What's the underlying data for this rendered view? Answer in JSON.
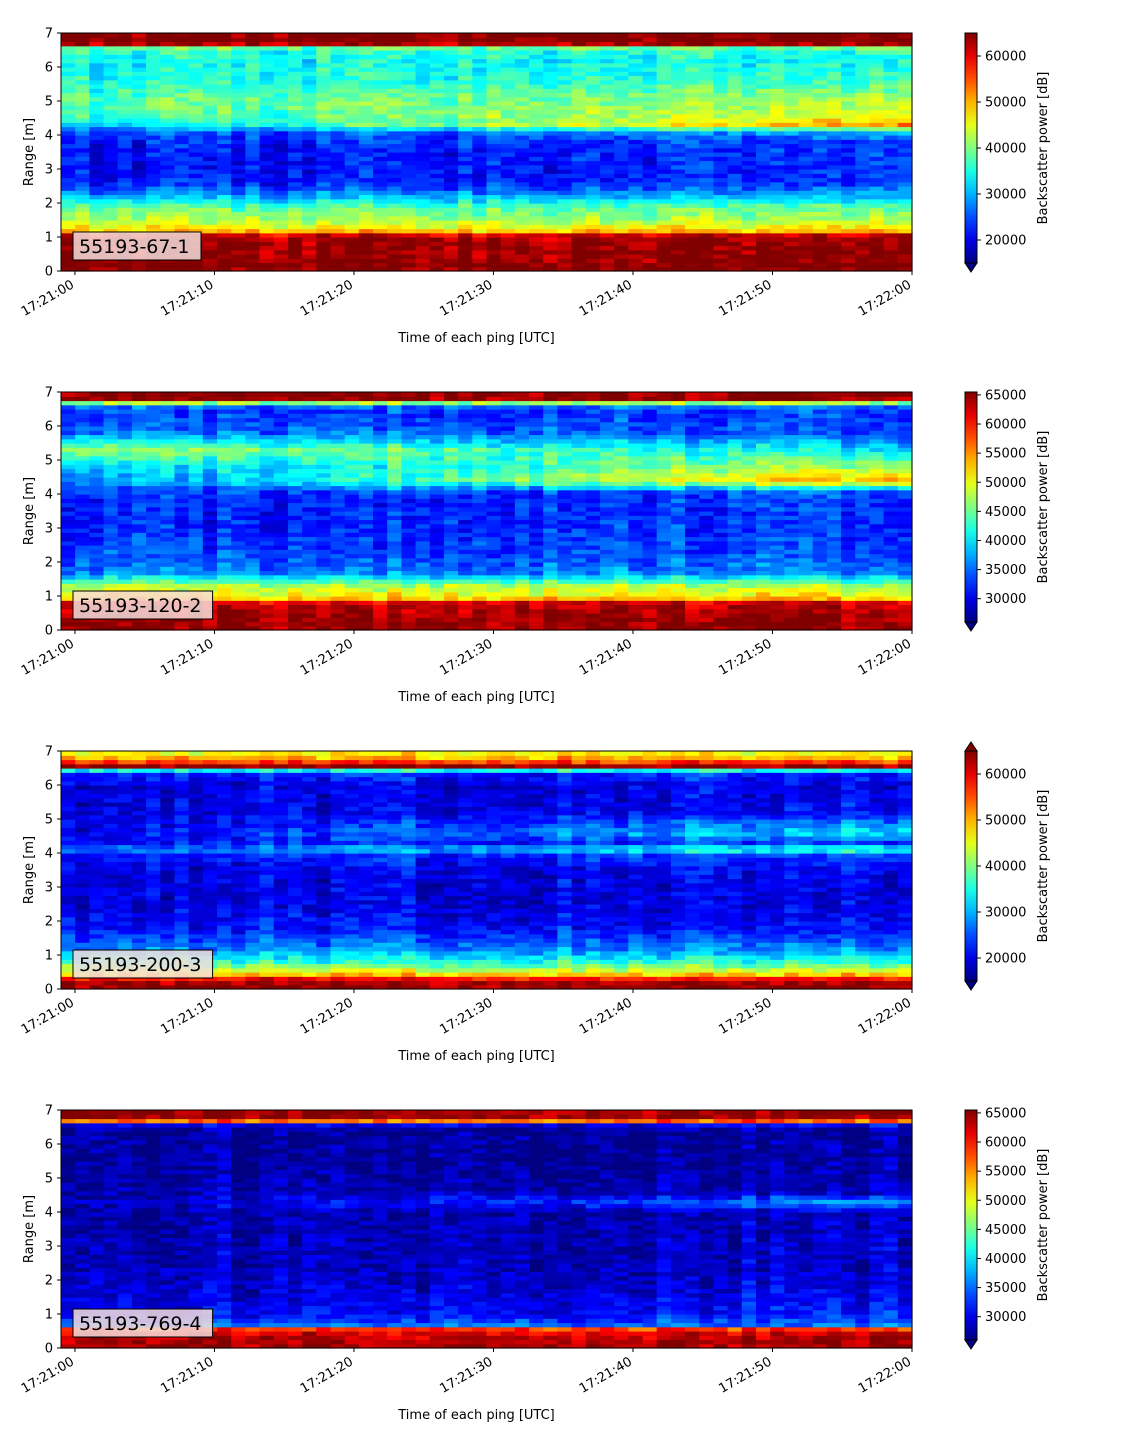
{
  "chart_data": [
    {
      "type": "heatmap",
      "panel_label": "55193-67-1",
      "xlabel": "Time of each ping [UTC]",
      "ylabel": "Range [m]",
      "colorbar_label": "Backscatter power [dB]",
      "colormap": "jet",
      "extend": "min",
      "xlim": [
        "17:20:59",
        "17:22:00"
      ],
      "ylim": [
        0,
        7
      ],
      "clim": [
        15000,
        65000
      ],
      "x_ticks": [
        "17:21:00",
        "17:21:10",
        "17:21:20",
        "17:21:30",
        "17:21:40",
        "17:21:50",
        "17:22:00"
      ],
      "y_ticks": [
        0,
        1,
        2,
        3,
        4,
        5,
        6,
        7
      ],
      "colorbar_ticks": [
        20000,
        30000,
        40000,
        50000,
        60000
      ],
      "profile": [
        {
          "range": 0.0,
          "start": 65000,
          "end": 65000
        },
        {
          "range": 0.2,
          "start": 65000,
          "end": 65000
        },
        {
          "range": 0.4,
          "start": 64000,
          "end": 64000
        },
        {
          "range": 0.8,
          "start": 64000,
          "end": 64000
        },
        {
          "range": 1.05,
          "start": 62000,
          "end": 62000
        },
        {
          "range": 1.2,
          "start": 48000,
          "end": 48000
        },
        {
          "range": 1.5,
          "start": 42000,
          "end": 42000
        },
        {
          "range": 1.9,
          "start": 38000,
          "end": 38000
        },
        {
          "range": 2.2,
          "start": 30000,
          "end": 30000
        },
        {
          "range": 2.6,
          "start": 22000,
          "end": 23000
        },
        {
          "range": 3.2,
          "start": 21000,
          "end": 23000
        },
        {
          "range": 3.8,
          "start": 22000,
          "end": 24000
        },
        {
          "range": 4.1,
          "start": 24000,
          "end": 30000
        },
        {
          "range": 4.3,
          "start": 30000,
          "end": 52000
        },
        {
          "range": 4.6,
          "start": 36000,
          "end": 45000
        },
        {
          "range": 5.0,
          "start": 38000,
          "end": 42000
        },
        {
          "range": 5.6,
          "start": 35000,
          "end": 36000
        },
        {
          "range": 6.2,
          "start": 34000,
          "end": 34000
        },
        {
          "range": 6.55,
          "start": 36000,
          "end": 36000
        },
        {
          "range": 6.7,
          "start": 65000,
          "end": 65000
        },
        {
          "range": 7.0,
          "start": 65000,
          "end": 65000
        }
      ]
    },
    {
      "type": "heatmap",
      "panel_label": "55193-120-2",
      "xlabel": "Time of each ping [UTC]",
      "ylabel": "Range [m]",
      "colorbar_label": "Backscatter power [dB]",
      "colormap": "jet",
      "extend": "min",
      "xlim": [
        "17:20:59",
        "17:22:00"
      ],
      "ylim": [
        0,
        7
      ],
      "clim": [
        26000,
        65500
      ],
      "x_ticks": [
        "17:21:00",
        "17:21:10",
        "17:21:20",
        "17:21:30",
        "17:21:40",
        "17:21:50",
        "17:22:00"
      ],
      "y_ticks": [
        0,
        1,
        2,
        3,
        4,
        5,
        6,
        7
      ],
      "colorbar_ticks": [
        30000,
        35000,
        40000,
        45000,
        50000,
        55000,
        60000,
        65000
      ],
      "profile": [
        {
          "range": 0.0,
          "start": 65000,
          "end": 65000
        },
        {
          "range": 0.2,
          "start": 65000,
          "end": 65000
        },
        {
          "range": 0.5,
          "start": 64000,
          "end": 64000
        },
        {
          "range": 0.8,
          "start": 63000,
          "end": 63000
        },
        {
          "range": 0.95,
          "start": 52000,
          "end": 52000
        },
        {
          "range": 1.3,
          "start": 48000,
          "end": 48000
        },
        {
          "range": 1.5,
          "start": 42000,
          "end": 42000
        },
        {
          "range": 1.7,
          "start": 36000,
          "end": 36000
        },
        {
          "range": 2.2,
          "start": 34000,
          "end": 34000
        },
        {
          "range": 3.0,
          "start": 32000,
          "end": 33000
        },
        {
          "range": 3.8,
          "start": 32000,
          "end": 33000
        },
        {
          "range": 4.1,
          "start": 33000,
          "end": 35000
        },
        {
          "range": 4.4,
          "start": 35000,
          "end": 56000
        },
        {
          "range": 4.8,
          "start": 38000,
          "end": 48000
        },
        {
          "range": 5.3,
          "start": 48000,
          "end": 40000
        },
        {
          "range": 5.8,
          "start": 36000,
          "end": 34000
        },
        {
          "range": 6.4,
          "start": 33000,
          "end": 33000
        },
        {
          "range": 6.65,
          "start": 36000,
          "end": 36000
        },
        {
          "range": 6.75,
          "start": 65000,
          "end": 65000
        },
        {
          "range": 7.0,
          "start": 65000,
          "end": 65000
        }
      ]
    },
    {
      "type": "heatmap",
      "panel_label": "55193-200-3",
      "xlabel": "Time of each ping [UTC]",
      "ylabel": "Range [m]",
      "colorbar_label": "Backscatter power [dB]",
      "colormap": "jet",
      "extend": "both",
      "xlim": [
        "17:20:59",
        "17:22:00"
      ],
      "ylim": [
        0,
        7
      ],
      "clim": [
        15000,
        65000
      ],
      "x_ticks": [
        "17:21:00",
        "17:21:10",
        "17:21:20",
        "17:21:30",
        "17:21:40",
        "17:21:50",
        "17:22:00"
      ],
      "y_ticks": [
        0,
        1,
        2,
        3,
        4,
        5,
        6,
        7
      ],
      "colorbar_ticks": [
        20000,
        30000,
        40000,
        50000,
        60000
      ],
      "profile": [
        {
          "range": 0.0,
          "start": 65000,
          "end": 65000
        },
        {
          "range": 0.25,
          "start": 63000,
          "end": 63000
        },
        {
          "range": 0.45,
          "start": 48000,
          "end": 48000
        },
        {
          "range": 0.8,
          "start": 36000,
          "end": 36000
        },
        {
          "range": 1.2,
          "start": 28000,
          "end": 28000
        },
        {
          "range": 1.8,
          "start": 22000,
          "end": 22000
        },
        {
          "range": 2.5,
          "start": 20000,
          "end": 20000
        },
        {
          "range": 3.5,
          "start": 20000,
          "end": 21000
        },
        {
          "range": 4.0,
          "start": 22000,
          "end": 26000
        },
        {
          "range": 4.1,
          "start": 28000,
          "end": 40000
        },
        {
          "range": 4.3,
          "start": 22000,
          "end": 24000
        },
        {
          "range": 4.6,
          "start": 21000,
          "end": 34000
        },
        {
          "range": 5.2,
          "start": 20000,
          "end": 22000
        },
        {
          "range": 6.0,
          "start": 20000,
          "end": 20000
        },
        {
          "range": 6.4,
          "start": 24000,
          "end": 24000
        },
        {
          "range": 6.55,
          "start": 65000,
          "end": 65000
        },
        {
          "range": 6.75,
          "start": 52000,
          "end": 52000
        },
        {
          "range": 7.0,
          "start": 45000,
          "end": 45000
        }
      ]
    },
    {
      "type": "heatmap",
      "panel_label": "55193-769-4",
      "xlabel": "Time of each ping [UTC]",
      "ylabel": "Range [m]",
      "colorbar_label": "Backscatter power [dB]",
      "colormap": "jet",
      "extend": "min",
      "xlim": [
        "17:20:59",
        "17:22:00"
      ],
      "ylim": [
        0,
        7
      ],
      "clim": [
        26000,
        65500
      ],
      "x_ticks": [
        "17:21:00",
        "17:21:10",
        "17:21:20",
        "17:21:30",
        "17:21:40",
        "17:21:50",
        "17:22:00"
      ],
      "y_ticks": [
        0,
        1,
        2,
        3,
        4,
        5,
        6,
        7
      ],
      "colorbar_ticks": [
        30000,
        35000,
        40000,
        45000,
        50000,
        55000,
        60000,
        65000
      ],
      "profile": [
        {
          "range": 0.0,
          "start": 65000,
          "end": 65000
        },
        {
          "range": 0.25,
          "start": 64000,
          "end": 64000
        },
        {
          "range": 0.55,
          "start": 62000,
          "end": 62000
        },
        {
          "range": 0.65,
          "start": 36000,
          "end": 36000
        },
        {
          "range": 1.0,
          "start": 31000,
          "end": 32000
        },
        {
          "range": 2.0,
          "start": 29000,
          "end": 29500
        },
        {
          "range": 3.0,
          "start": 28500,
          "end": 29000
        },
        {
          "range": 4.0,
          "start": 28000,
          "end": 28500
        },
        {
          "range": 4.3,
          "start": 28500,
          "end": 38000
        },
        {
          "range": 4.6,
          "start": 28000,
          "end": 28500
        },
        {
          "range": 5.5,
          "start": 27500,
          "end": 27500
        },
        {
          "range": 6.55,
          "start": 27500,
          "end": 27500
        },
        {
          "range": 6.65,
          "start": 52000,
          "end": 52000
        },
        {
          "range": 6.75,
          "start": 65000,
          "end": 65000
        },
        {
          "range": 7.0,
          "start": 65000,
          "end": 65000
        }
      ]
    }
  ]
}
